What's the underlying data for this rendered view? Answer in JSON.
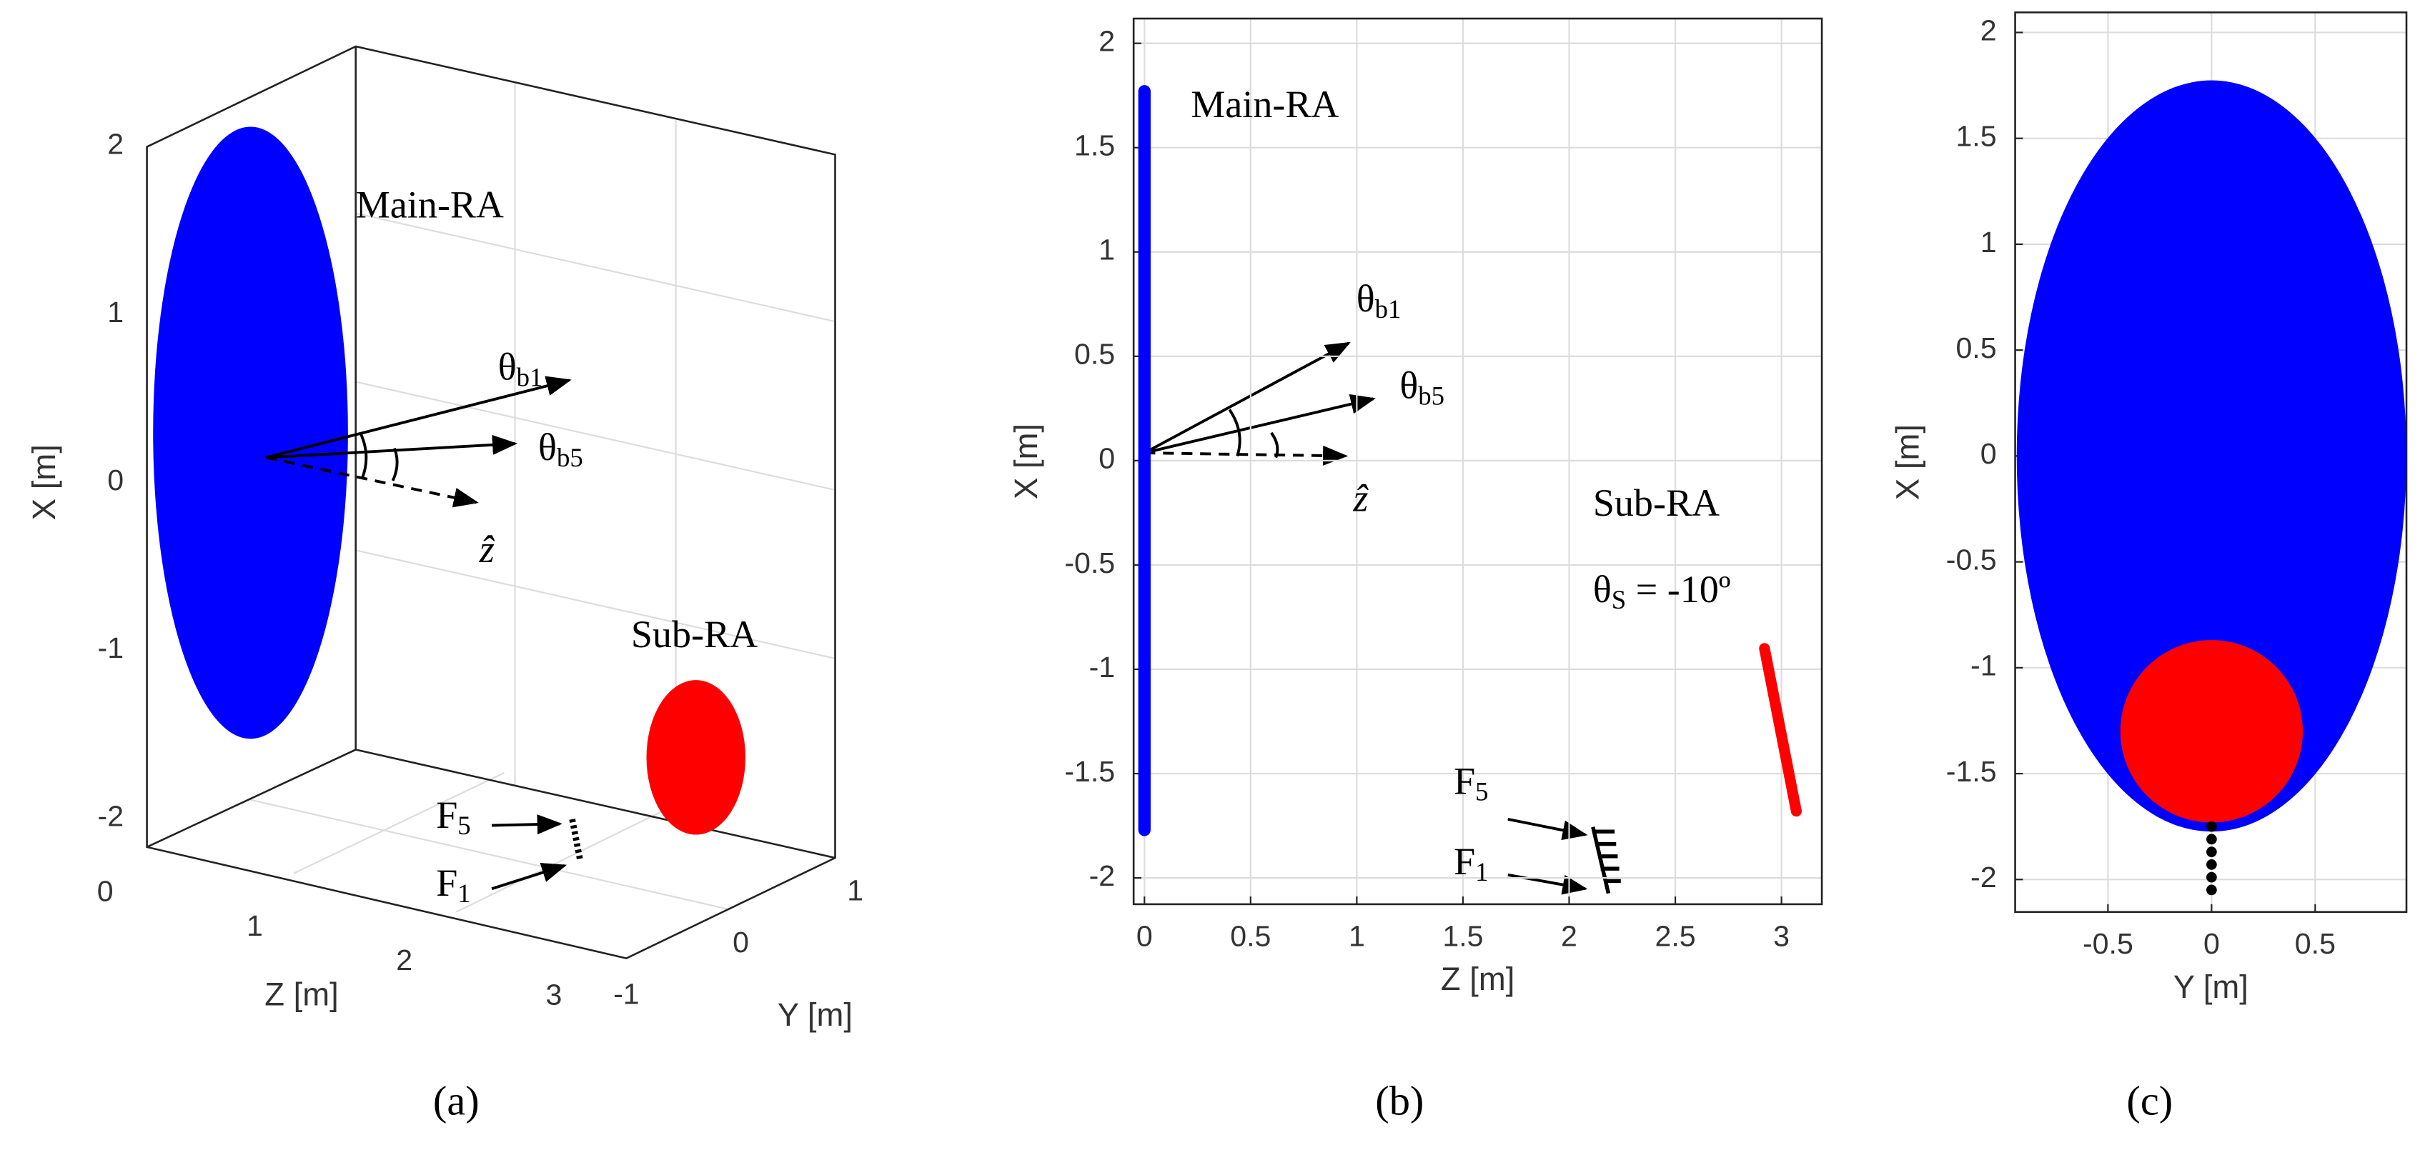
{
  "panels": [
    {
      "caption": "(a)",
      "vertical_label": "X [m]",
      "z_label": "Z [m]",
      "y_label": "Y [m]",
      "vertical_ticks": [
        -2,
        -1,
        0,
        1,
        2
      ],
      "z_ticks": [
        0,
        1,
        2,
        3
      ],
      "y_ticks": [
        -1,
        0,
        1
      ],
      "annotations": {
        "main": "Main-RA",
        "sub": "Sub-RA",
        "theta_b1": {
          "base": "θ",
          "sub": "b1"
        },
        "theta_b5": {
          "base": "θ",
          "sub": "b5"
        },
        "z_hat": "ẑ",
        "f5": {
          "base": "F",
          "sub": "5"
        },
        "f1": {
          "base": "F",
          "sub": "1"
        }
      }
    },
    {
      "caption": "(b)",
      "x_label": "Z [m]",
      "y_label": "X [m]",
      "xticks": [
        0,
        0.5,
        1,
        1.5,
        2,
        2.5,
        3
      ],
      "yticks": [
        -2,
        -1.5,
        -1,
        -0.5,
        0,
        0.5,
        1,
        1.5,
        2
      ],
      "annotations": {
        "main": "Main-RA",
        "sub": "Sub-RA",
        "theta_b1": {
          "base": "θ",
          "sub": "b1"
        },
        "theta_b5": {
          "base": "θ",
          "sub": "b5"
        },
        "z_hat": "ẑ",
        "theta_s": {
          "base": "θ",
          "sub": "S",
          "rest": " = -10º"
        },
        "f5": {
          "base": "F",
          "sub": "5"
        },
        "f1": {
          "base": "F",
          "sub": "1"
        }
      }
    },
    {
      "caption": "(c)",
      "x_label": "Y [m]",
      "y_label": "X [m]",
      "xticks": [
        -0.5,
        0,
        0.5
      ],
      "yticks": [
        -2,
        -1.5,
        -1,
        -0.5,
        0,
        0.5,
        1,
        1.5,
        2
      ]
    }
  ]
}
